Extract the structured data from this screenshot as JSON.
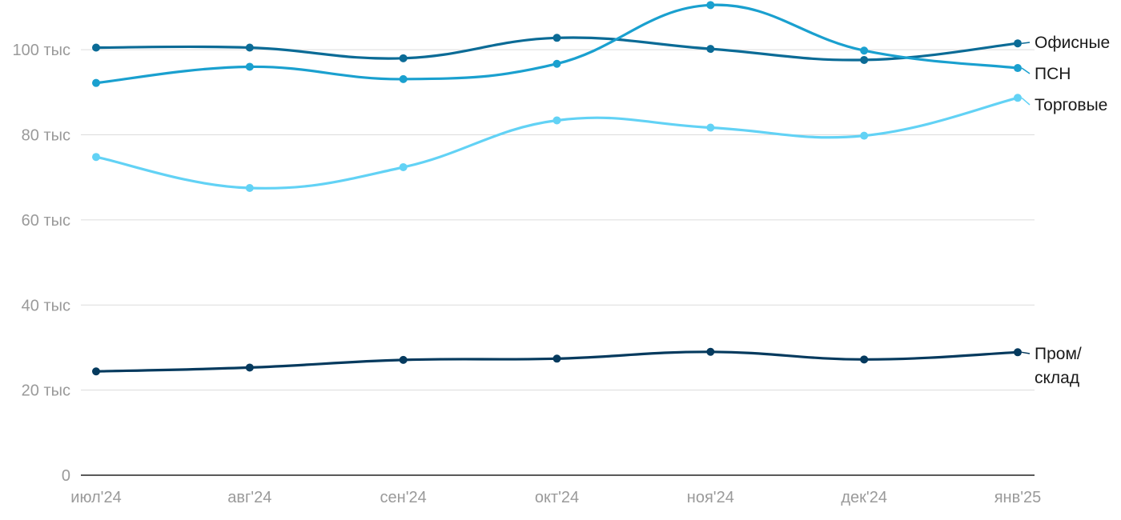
{
  "chart_data": {
    "type": "line",
    "categories": [
      "июл'24",
      "авг'24",
      "сен'24",
      "окт'24",
      "ноя'24",
      "дек'24",
      "янв'25"
    ],
    "ylim": [
      0,
      110000
    ],
    "yticks": [
      {
        "value": 0,
        "label": "0"
      },
      {
        "value": 20000,
        "label": "20 тыс"
      },
      {
        "value": 40000,
        "label": "40 тыс"
      },
      {
        "value": 60000,
        "label": "60 тыс"
      },
      {
        "value": 80000,
        "label": "80 тыс"
      },
      {
        "value": 100000,
        "label": "100 тыс"
      }
    ],
    "grid": true,
    "legend": "direct labels at right end of lines",
    "series": [
      {
        "name": "Офисные",
        "label_lines": [
          "Офисные"
        ],
        "color": "#0b6b96",
        "values": [
          100500,
          100500,
          98000,
          102800,
          100200,
          97600,
          101500
        ]
      },
      {
        "name": "ПСН",
        "label_lines": [
          "ПСН"
        ],
        "color": "#1aa0cf",
        "values": [
          92200,
          96000,
          93100,
          96700,
          110500,
          99800,
          95700
        ]
      },
      {
        "name": "Торговые",
        "label_lines": [
          "Торговые"
        ],
        "color": "#62d2f5",
        "values": [
          74800,
          67500,
          72400,
          83400,
          81700,
          79800,
          88700
        ]
      },
      {
        "name": "Пром/склад",
        "label_lines": [
          "Пром/",
          "склад"
        ],
        "color": "#053a5e",
        "values": [
          24400,
          25300,
          27100,
          27400,
          29000,
          27200,
          28900
        ]
      }
    ]
  }
}
